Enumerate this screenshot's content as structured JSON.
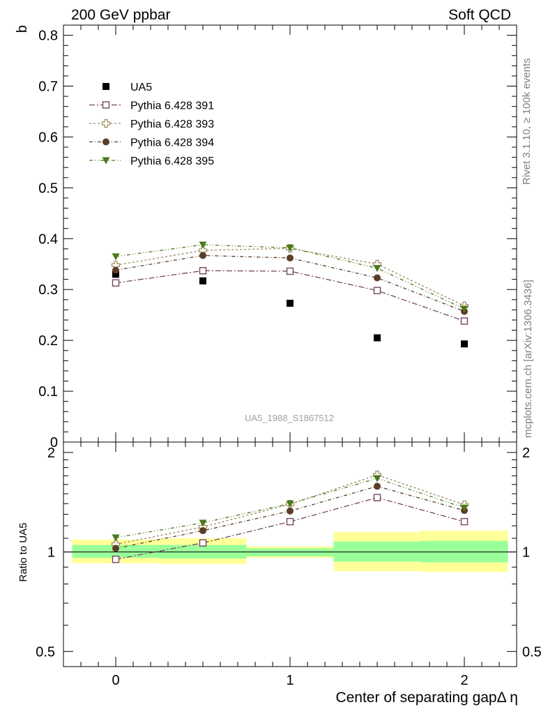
{
  "header": {
    "left_title": "200 GeV ppbar",
    "right_title": "Soft QCD"
  },
  "side_text": {
    "rivet": "Rivet 3.1.10, ≥ 100k events",
    "mcplots": "mcplots.cern.ch [arXiv:1306.3436]"
  },
  "watermark": "UA5_1988_S1867512",
  "colors": {
    "ua5": "#000000",
    "p391": "#74465e",
    "p393": "#9e8a5e",
    "p394": "#5b3e27",
    "p395": "#4a7a1c",
    "band_inner": "#99ff99",
    "band_outer": "#ffff99"
  },
  "chart_data": [
    {
      "type": "line",
      "panel": "main",
      "ylabel": "b",
      "ylim": [
        0,
        0.82
      ],
      "yticks": [
        0,
        0.1,
        0.2,
        0.3,
        0.4,
        0.5,
        0.6,
        0.7,
        0.8
      ],
      "ytick_labels": [
        "0",
        "0.1",
        "0.2",
        "0.3",
        "0.4",
        "0.5",
        "0.6",
        "0.7",
        "0.8"
      ],
      "xlim": [
        -0.3,
        2.3
      ],
      "legend_position": "top-left",
      "x": [
        0,
        0.5,
        1,
        1.5,
        2
      ],
      "series": [
        {
          "name": "UA5",
          "style": "data",
          "marker": "square-filled",
          "values": [
            0.33,
            0.317,
            0.273,
            0.205,
            0.193
          ]
        },
        {
          "name": "Pythia 6.428 391",
          "marker": "square-open",
          "values": [
            0.313,
            0.337,
            0.336,
            0.298,
            0.238
          ]
        },
        {
          "name": "Pythia 6.428 393",
          "marker": "cross-open",
          "values": [
            0.348,
            0.377,
            0.381,
            0.35,
            0.268
          ]
        },
        {
          "name": "Pythia 6.428 394",
          "marker": "circle-filled",
          "values": [
            0.338,
            0.367,
            0.362,
            0.323,
            0.257
          ]
        },
        {
          "name": "Pythia 6.428 395",
          "marker": "triangle-down-filled",
          "values": [
            0.365,
            0.388,
            0.382,
            0.342,
            0.262
          ]
        }
      ]
    },
    {
      "type": "line",
      "panel": "ratio",
      "ylabel": "Ratio to UA5",
      "xlabel": "Center of separating gapΔ η",
      "ylim": [
        0.45,
        2.15
      ],
      "yticks": [
        0.5,
        1,
        2
      ],
      "ytick_labels": [
        "0.5",
        "1",
        "2"
      ],
      "xticks": [
        0,
        1,
        2
      ],
      "xtick_labels": [
        "0",
        "1",
        "2"
      ],
      "xlim": [
        -0.3,
        2.3
      ],
      "x": [
        0,
        0.5,
        1,
        1.5,
        2
      ],
      "bands": [
        {
          "x0": -0.25,
          "x1": 0.25,
          "inner": [
            0.96,
            1.05
          ],
          "outer": [
            0.925,
            1.09
          ]
        },
        {
          "x0": 0.25,
          "x1": 0.75,
          "inner": [
            0.955,
            1.05
          ],
          "outer": [
            0.92,
            1.1
          ]
        },
        {
          "x0": 0.75,
          "x1": 1.25,
          "inner": [
            0.97,
            1.025
          ],
          "outer": [
            0.96,
            1.04
          ]
        },
        {
          "x0": 1.25,
          "x1": 1.75,
          "inner": [
            0.935,
            1.075
          ],
          "outer": [
            0.875,
            1.15
          ]
        },
        {
          "x0": 1.75,
          "x1": 2.25,
          "inner": [
            0.93,
            1.08
          ],
          "outer": [
            0.87,
            1.16
          ]
        }
      ],
      "series": [
        {
          "name": "Pythia 6.428 391",
          "marker": "square-open",
          "values": [
            0.95,
            1.065,
            1.235,
            1.46,
            1.235
          ]
        },
        {
          "name": "Pythia 6.428 393",
          "marker": "cross-open",
          "values": [
            1.055,
            1.19,
            1.395,
            1.71,
            1.39
          ]
        },
        {
          "name": "Pythia 6.428 394",
          "marker": "circle-filled",
          "values": [
            1.025,
            1.16,
            1.33,
            1.58,
            1.335
          ]
        },
        {
          "name": "Pythia 6.428 395",
          "marker": "triangle-down-filled",
          "values": [
            1.105,
            1.225,
            1.4,
            1.67,
            1.36
          ]
        }
      ]
    }
  ]
}
